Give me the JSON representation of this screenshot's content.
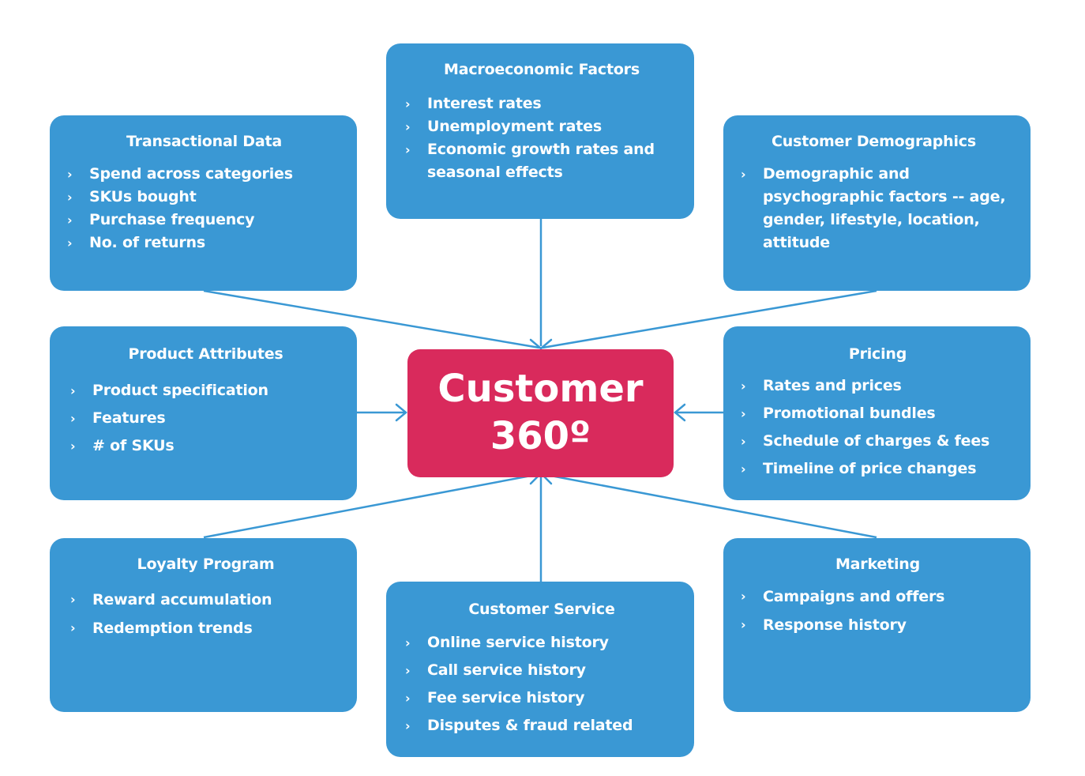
{
  "center": {
    "line1": "Customer",
    "line2": "360º"
  },
  "boxes": {
    "macro": {
      "title": "Macroeconomic Factors",
      "items": [
        "Interest rates",
        "Unemployment rates",
        "Economic growth rates and seasonal effects"
      ]
    },
    "transactional": {
      "title": "Transactional Data",
      "items": [
        "Spend across categories",
        "SKUs bought",
        "Purchase frequency",
        "No. of returns"
      ]
    },
    "demographics": {
      "title": "Customer Demographics",
      "items": [
        "Demographic and psychographic factors -- age, gender, lifestyle, location, attitude"
      ]
    },
    "product": {
      "title": "Product Attributes",
      "items": [
        "Product specification",
        "Features",
        "# of SKUs"
      ]
    },
    "pricing": {
      "title": "Pricing",
      "items": [
        "Rates and prices",
        "Promotional bundles",
        "Schedule of charges & fees",
        "Timeline of price changes"
      ]
    },
    "loyalty": {
      "title": "Loyalty Program",
      "items": [
        "Reward accumulation",
        "Redemption trends"
      ]
    },
    "service": {
      "title": "Customer Service",
      "items": [
        "Online service history",
        "Call service history",
        "Fee service history",
        "Disputes & fraud related"
      ]
    },
    "marketing": {
      "title": "Marketing",
      "items": [
        "Campaigns and offers",
        "Response history"
      ]
    }
  },
  "bullet_glyph": "›",
  "colors": {
    "box_blue": "#3a98d4",
    "center_red": "#d92a5c",
    "connector": "#3a98d4",
    "text": "#ffffff"
  }
}
